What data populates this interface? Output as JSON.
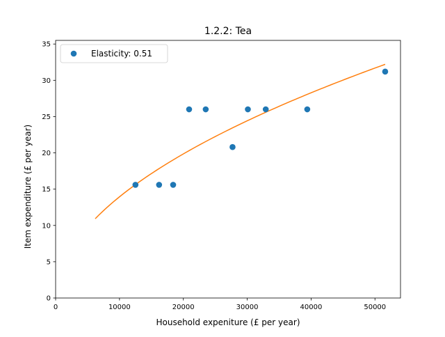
{
  "chart_data": {
    "type": "scatter",
    "title": "1.2.2: Tea",
    "xlabel": "Household expeniture (£ per year)",
    "ylabel": "Item expenditure (£ per year)",
    "xlim": [
      0,
      54000
    ],
    "ylim": [
      0,
      35.5
    ],
    "xticks": [
      0,
      10000,
      20000,
      30000,
      40000,
      50000
    ],
    "yticks": [
      0,
      5,
      10,
      15,
      20,
      25,
      30,
      35
    ],
    "grid": false,
    "legend_position": "top-left",
    "legend_label": "Elasticity: 0.51",
    "series": [
      {
        "name": "Elasticity: 0.51",
        "kind": "scatter",
        "color": "#1f77b4",
        "points": [
          {
            "x": 12500,
            "y": 15.6
          },
          {
            "x": 16200,
            "y": 15.6
          },
          {
            "x": 18400,
            "y": 15.6
          },
          {
            "x": 20900,
            "y": 26.0
          },
          {
            "x": 23500,
            "y": 26.0
          },
          {
            "x": 27700,
            "y": 20.8
          },
          {
            "x": 30100,
            "y": 26.0
          },
          {
            "x": 32900,
            "y": 26.0
          },
          {
            "x": 39400,
            "y": 26.0
          },
          {
            "x": 51600,
            "y": 31.2
          }
        ]
      },
      {
        "kind": "fit",
        "color": "#ff7f0e",
        "model": "power",
        "exponent": 0.51,
        "x_range": [
          6200,
          51600
        ],
        "anchor": {
          "x": 51600,
          "y": 32.2
        }
      }
    ]
  }
}
